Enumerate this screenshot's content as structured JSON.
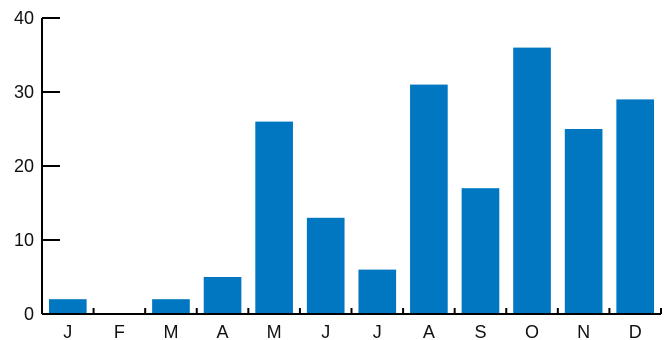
{
  "chart_data": {
    "type": "bar",
    "title": "",
    "xlabel": "",
    "ylabel": "",
    "categories": [
      "J",
      "F",
      "M",
      "A",
      "M",
      "J",
      "J",
      "A",
      "S",
      "O",
      "N",
      "D"
    ],
    "values": [
      2,
      0,
      2,
      5,
      26,
      13,
      6,
      31,
      17,
      36,
      25,
      29
    ],
    "ylim": [
      0,
      40
    ],
    "yticks": [
      0,
      10,
      20,
      30,
      40
    ],
    "grid": false,
    "legend": "none",
    "bar_color": "#0077c0",
    "axis_color": "#000000"
  }
}
